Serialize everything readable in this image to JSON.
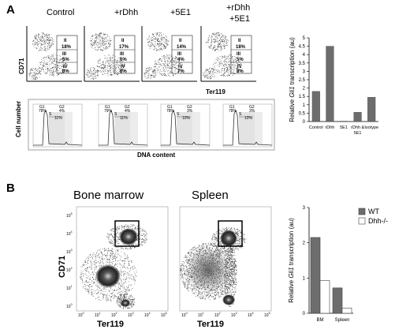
{
  "panels": {
    "A": {
      "label": "A",
      "flow_top": {
        "conditions": [
          "Control",
          "+rDhh",
          "+5E1",
          "+rDhh"
        ],
        "condition4_line2": "+5E1",
        "y_axis": "CD71",
        "x_axis": "Ter119",
        "gates": [
          {
            "II": "18%",
            "III": "5%",
            "IV": "8%"
          },
          {
            "II": "17%",
            "III": "5%",
            "IV": "8%"
          },
          {
            "II": "14%",
            "III": "4%",
            "IV": "7%"
          },
          {
            "II": "18%",
            "III": "5%",
            "IV": "8%"
          }
        ],
        "gate_names": [
          "II",
          "III",
          "IV"
        ]
      },
      "flow_bottom": {
        "y_axis": "Cell number",
        "x_axis": "DNA content",
        "phase_labels": [
          "G1",
          "G2",
          "S"
        ],
        "histograms": [
          {
            "G1": "78%",
            "G2": "4%",
            "S": "11%"
          },
          {
            "G1": "79%",
            "G2": "4%",
            "S": "11%"
          },
          {
            "G1": "78%",
            "G2": "3%",
            "S": "10%"
          },
          {
            "G1": "78%",
            "G2": "3%",
            "S": "10%"
          }
        ]
      }
    },
    "B": {
      "label": "B",
      "titles": [
        "Bone marrow",
        "Spleen"
      ],
      "y_axis": "CD71",
      "x_axis": "Ter119",
      "tick_labels": [
        "10",
        "10",
        "10",
        "10",
        "10",
        "10"
      ],
      "tick_exponents": [
        "0",
        "1",
        "2",
        "3",
        "4",
        "5"
      ]
    }
  },
  "chart_data": [
    {
      "type": "bar",
      "ylabel_prefix": "Relative ",
      "ylabel_gene": "Gli1",
      "ylabel_suffix": " transcription (au)",
      "categories": [
        "Control",
        "rDhh",
        "5E1",
        "rDhh &",
        "Isotype"
      ],
      "category_line2": [
        "",
        "",
        "",
        "5E1",
        ""
      ],
      "values": [
        1.8,
        4.5,
        0.02,
        0.55,
        1.45
      ],
      "ylim": [
        0,
        5
      ],
      "yticks": [
        "0",
        "0.5",
        "1",
        "1.5",
        "2",
        "2.5",
        "3",
        "3.5",
        "4",
        "4.5",
        "5"
      ],
      "bar_color": "#6d6d6d"
    },
    {
      "type": "bar",
      "ylabel_prefix": "Relative ",
      "ylabel_gene": "Gli1",
      "ylabel_suffix": " transcription (au)",
      "categories": [
        "BM",
        "Spleen"
      ],
      "series": [
        {
          "name": "WT",
          "values": [
            2.15,
            0.72
          ],
          "color": "#6d6d6d"
        },
        {
          "name": "Dhh-/-",
          "values": [
            0.93,
            0.15
          ],
          "color": "#ffffff"
        }
      ],
      "ylim": [
        0,
        3
      ],
      "yticks": [
        "0",
        "1",
        "2",
        "3"
      ],
      "legend": "top-right"
    }
  ]
}
